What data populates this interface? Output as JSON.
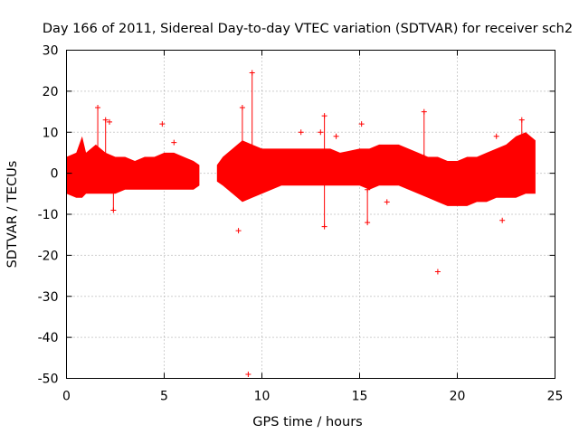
{
  "chart_data": {
    "type": "scatter",
    "title": "Day 166 of 2011, Sidereal Day-to-day VTEC variation (SDTVAR) for receiver sch2",
    "xlabel": "GPS time / hours",
    "ylabel": "SDTVAR / TECUs",
    "xlim": [
      0,
      25
    ],
    "ylim": [
      -50,
      30
    ],
    "xticks": [
      0,
      5,
      10,
      15,
      20,
      25
    ],
    "yticks": [
      30,
      20,
      10,
      0,
      -10,
      -20,
      -30,
      -40,
      -50
    ],
    "xtick_labels": [
      "0",
      "5",
      "10",
      "15",
      "20",
      "25"
    ],
    "ytick_labels": [
      "30",
      "20",
      "10",
      "0",
      "-10",
      "-20",
      "-30",
      "-40",
      "-50"
    ],
    "grid": true,
    "series_color": "#ff0000",
    "marker": "+",
    "dense_band": {
      "segments": [
        {
          "x": [
            0.0,
            0.5,
            0.8,
            1.0,
            1.5,
            2.0,
            2.5,
            3.0,
            3.5,
            4.0,
            4.5,
            5.0,
            5.5,
            6.0,
            6.5,
            6.8
          ],
          "upper": [
            4,
            5,
            9,
            5,
            7,
            5,
            4,
            4,
            3,
            4,
            4,
            5,
            5,
            4,
            3,
            2
          ],
          "lower": [
            -5,
            -6,
            -6,
            -5,
            -5,
            -5,
            -5,
            -4,
            -4,
            -4,
            -4,
            -4,
            -4,
            -4,
            -4,
            -3
          ]
        },
        {
          "x": [
            7.7,
            8.0,
            8.5,
            9.0,
            9.5,
            10.0,
            10.5,
            11.0,
            12.0,
            13.0,
            13.5,
            14.0,
            15.0,
            15.5,
            16.0,
            16.5,
            17.0,
            17.5,
            18.0,
            18.5,
            19.0,
            19.5,
            20.0,
            20.5,
            21.0,
            21.5,
            22.0,
            22.5,
            23.0,
            23.5,
            24.0
          ],
          "upper": [
            2,
            4,
            6,
            8,
            7,
            6,
            6,
            6,
            6,
            6,
            6,
            5,
            6,
            6,
            7,
            7,
            7,
            6,
            5,
            4,
            4,
            3,
            3,
            4,
            4,
            5,
            6,
            7,
            9,
            10,
            8
          ],
          "lower": [
            -2,
            -3,
            -5,
            -7,
            -6,
            -5,
            -4,
            -3,
            -3,
            -3,
            -3,
            -3,
            -3,
            -4,
            -3,
            -3,
            -3,
            -4,
            -5,
            -6,
            -7,
            -8,
            -8,
            -8,
            -7,
            -7,
            -6,
            -6,
            -6,
            -5,
            -5
          ]
        }
      ]
    },
    "spikes": [
      {
        "x": 1.6,
        "y_min": -2,
        "y_max": 16
      },
      {
        "x": 2.0,
        "y_min": 0,
        "y_max": 13
      },
      {
        "x": 2.4,
        "y_min": -9,
        "y_max": -2
      },
      {
        "x": 9.0,
        "y_min": 3,
        "y_max": 16
      },
      {
        "x": 9.5,
        "y_min": 3,
        "y_max": 24.5
      },
      {
        "x": 13.2,
        "y_min": -13,
        "y_max": 14
      },
      {
        "x": 15.4,
        "y_min": -12,
        "y_max": -4
      },
      {
        "x": 18.3,
        "y_min": 4,
        "y_max": 15
      },
      {
        "x": 23.3,
        "y_min": 4,
        "y_max": 13
      }
    ],
    "outliers": [
      {
        "x": 2.2,
        "y": 12.5
      },
      {
        "x": 4.9,
        "y": 12
      },
      {
        "x": 5.5,
        "y": 7.5
      },
      {
        "x": 8.8,
        "y": -14
      },
      {
        "x": 9.3,
        "y": -49
      },
      {
        "x": 9.9,
        "y": 0
      },
      {
        "x": 12.0,
        "y": 10
      },
      {
        "x": 13.0,
        "y": 10
      },
      {
        "x": 13.8,
        "y": 9
      },
      {
        "x": 15.1,
        "y": 12
      },
      {
        "x": 16.4,
        "y": -7
      },
      {
        "x": 19.0,
        "y": -24
      },
      {
        "x": 19.6,
        "y": -6.5
      },
      {
        "x": 22.0,
        "y": 9
      },
      {
        "x": 22.3,
        "y": -11.5
      }
    ]
  }
}
